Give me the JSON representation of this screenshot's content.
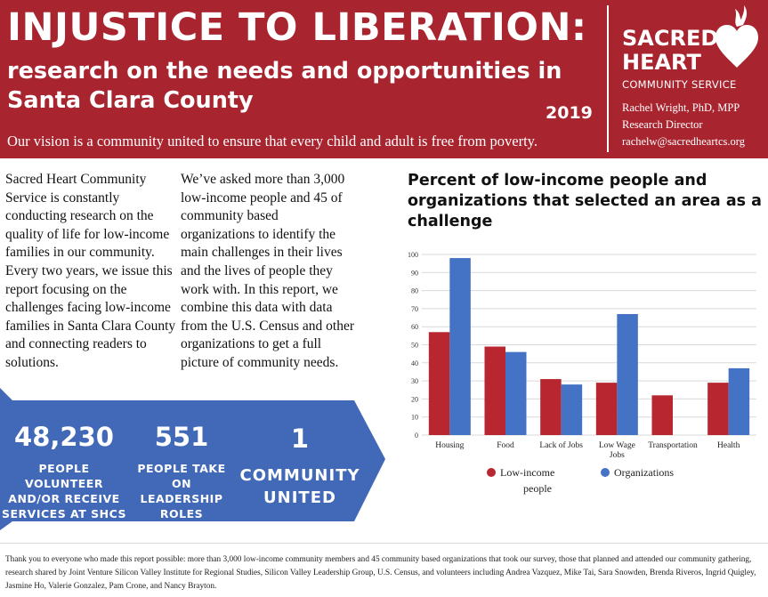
{
  "header": {
    "title": "INJUSTICE TO LIBERATION:",
    "subtitle": "research on the needs and opportunities in Santa Clara County",
    "year": "2019",
    "vision": "Our vision is a community united to ensure that every child and adult is free from poverty.",
    "org_name": "SACRED HEART",
    "org_sub": "COMMUNITY SERVICE",
    "contact_name": "Rachel Wright, PhD, MPP",
    "contact_role": "Research Director",
    "contact_email": "rachelw@sacredheartcs.org",
    "brand_color": "#a8242e"
  },
  "intro": {
    "col1": "Sacred Heart Community Service is constantly conducting research on the quality of life for low-income families in our community. Every two years, we issue this report focusing on the challenges facing low-income families in Santa Clara County and connecting readers to solutions.",
    "col2": "We’ve asked more than 3,000 low-income people and 45 of community based organizations to identify the main challenges in their lives and the lives of people they work with.   In this report, we combine this data with data from the U.S. Census and other organizations to get a full picture of community needs."
  },
  "stats": {
    "color": "#4169b8",
    "items": [
      {
        "num": "48,230",
        "label": "PEOPLE VOLUNTEER AND/OR RECEIVE SERVICES AT SHCS"
      },
      {
        "num": "551",
        "label": "PEOPLE TAKE ON LEADERSHIP ROLES"
      },
      {
        "num": "1",
        "label": "COMMUNITY UNITED"
      }
    ]
  },
  "chart_title": "Percent of low-income people and organizations that selected an area as a challenge",
  "chart_data": {
    "type": "bar",
    "categories": [
      "Housing",
      "Food",
      "Lack of Jobs",
      "Low Wage Jobs",
      "Transportation",
      "Health"
    ],
    "series": [
      {
        "name": "Low-income people",
        "color": "#b8262f",
        "values": [
          57,
          49,
          31,
          29,
          22,
          29
        ]
      },
      {
        "name": "Organizations",
        "color": "#4472c4",
        "values": [
          98,
          46,
          28,
          67,
          0,
          37
        ]
      }
    ],
    "ylim": [
      0,
      100
    ],
    "yticks": [
      0,
      10,
      20,
      30,
      40,
      50,
      60,
      70,
      80,
      90,
      100
    ],
    "grid": true,
    "legend": "bottom"
  },
  "footer": {
    "thanks": "Thank you to everyone who made this report possible: more than 3,000 low-income community members and 45 community based organizations that took our survey, those that planned and attended our community gathering, research shared by Joint Venture Silicon Valley Institute for Regional Studies, Silicon Valley Leadership Group, U.S. Census, and volunteers including Andrea Vazquez, Mike Tai, Sara Snowden, Brenda Riveros, Ingrid Quigley, Jasmine Ho, Valerie Gonzalez, Pam Crone, and Nancy Brayton."
  }
}
